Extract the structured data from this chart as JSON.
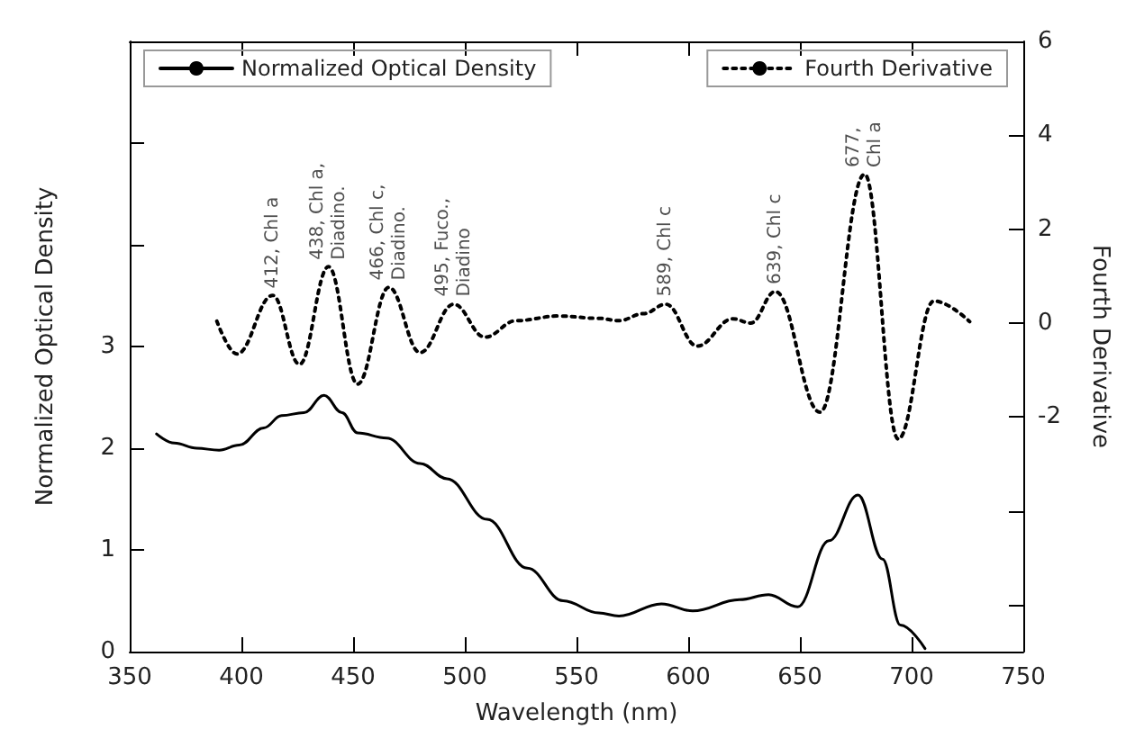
{
  "chart_data": {
    "type": "line",
    "xlabel": "Wavelength (nm)",
    "ylabel": "Normalized Optical Density",
    "y2label": "Fourth Derivative",
    "xlim": [
      350,
      750
    ],
    "xticks": [
      350,
      400,
      450,
      500,
      550,
      600,
      650,
      700,
      750
    ],
    "ylim": [
      0,
      6
    ],
    "yticks": [
      0,
      1,
      2,
      3,
      {
        "value": 4,
        "label": null
      },
      {
        "value": 5,
        "label": null
      }
    ],
    "y2lim": [
      -7,
      6
    ],
    "y2ticks": [
      {
        "value": -6,
        "label": null
      },
      {
        "value": -4,
        "label": null
      },
      -2,
      0,
      2,
      4,
      6
    ],
    "legend": "top",
    "grid": false,
    "marker": "none",
    "series": [
      {
        "name": "Normalized Optical Density",
        "color": "#000000",
        "line_style": "solid",
        "x": [
          362,
          370,
          380,
          390,
          399,
          410,
          418,
          428,
          437,
          445,
          452,
          465,
          480,
          492,
          510,
          528,
          544,
          560,
          569,
          588,
          602,
          623,
          636,
          649,
          663,
          676,
          687,
          695,
          706
        ],
        "values": [
          2.14,
          2.05,
          2.0,
          1.98,
          2.03,
          2.2,
          2.32,
          2.35,
          2.52,
          2.35,
          2.15,
          2.1,
          1.85,
          1.7,
          1.3,
          0.82,
          0.5,
          0.38,
          0.35,
          0.47,
          0.4,
          0.51,
          0.56,
          0.44,
          1.09,
          1.54,
          0.91,
          0.26,
          0.03
        ]
      },
      {
        "name": "Fourth Derivative",
        "color": "#000000",
        "line_style": "dotted",
        "axis": "y2",
        "x": [
          389,
          398,
          414,
          426,
          439,
          452,
          466,
          480,
          495,
          509,
          523,
          542,
          560,
          569,
          580,
          590,
          604,
          620,
          628,
          639,
          659,
          679,
          694,
          710,
          726
        ],
        "values": [
          0.04,
          -0.66,
          0.59,
          -0.88,
          1.2,
          -1.3,
          0.76,
          -0.63,
          0.4,
          -0.3,
          0.05,
          0.15,
          0.1,
          0.05,
          0.2,
          0.4,
          -0.49,
          0.09,
          0.0,
          0.67,
          -1.9,
          3.17,
          -2.47,
          0.47,
          0.03
        ]
      }
    ],
    "annotations": [
      {
        "text": "412, Chl a",
        "x": 414,
        "y": 3.5
      },
      {
        "text": "438, Chl a,\nDiadino.",
        "x": 439,
        "y": 3.78
      },
      {
        "text": "466, Chl c,\nDiadino.",
        "x": 466,
        "y": 3.58
      },
      {
        "text": "495, Fuco.,\nDiadino",
        "x": 495,
        "y": 3.42
      },
      {
        "text": "589, Chl c",
        "x": 590,
        "y": 3.42
      },
      {
        "text": "639, Chl c",
        "x": 639,
        "y": 3.54
      },
      {
        "text": "677,\nChl a",
        "x": 679,
        "y": 4.69
      }
    ]
  }
}
